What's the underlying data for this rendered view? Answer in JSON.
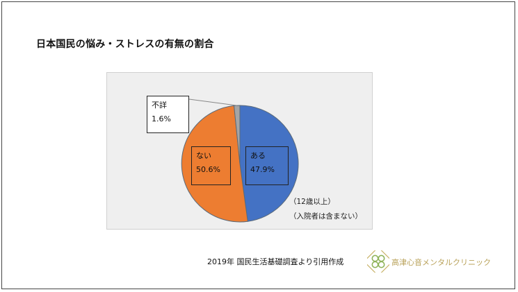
{
  "title": "日本国民の悩み・ストレスの有無の割合",
  "chart_data": {
    "type": "pie",
    "categories": [
      "ある",
      "ない",
      "不詳"
    ],
    "values": [
      47.9,
      50.6,
      1.6
    ],
    "value_labels": [
      "47.9%",
      "50.6%",
      "1.6%"
    ],
    "colors": [
      "#4472c4",
      "#ed7d31",
      "#a5a5a5"
    ],
    "start": "12 o'clock",
    "direction": "clockwise",
    "legend": "none",
    "notes": [
      "（12歳以上）",
      "（入院者は含まない）"
    ]
  },
  "source": "2019年  国民生活基礎調査より引用作成",
  "logo": {
    "text": "高津心音メンタルクリニック",
    "icon": "clover-logo-icon",
    "color": "#b9a25a"
  }
}
